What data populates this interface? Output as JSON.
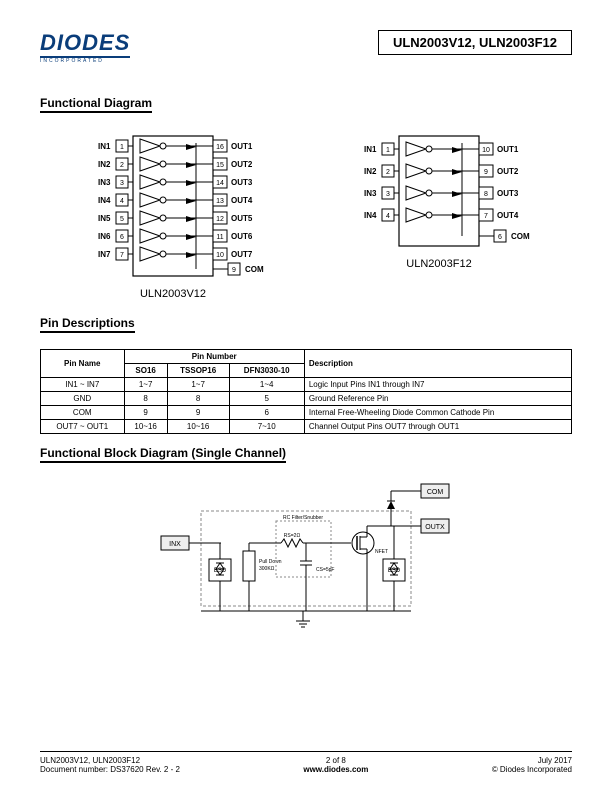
{
  "logo_text": "DIODES",
  "logo_sub": "INCORPORATED",
  "part_numbers": "ULN2003V12, ULN2003F12",
  "sections": {
    "functional_diagram": "Functional Diagram",
    "pin_descriptions": "Pin Descriptions",
    "block_diagram": "Functional Block Diagram (Single Channel)"
  },
  "diagram_v12": {
    "label": "ULN2003V12",
    "left_pins": [
      {
        "name": "IN1",
        "num": "1"
      },
      {
        "name": "IN2",
        "num": "2"
      },
      {
        "name": "IN3",
        "num": "3"
      },
      {
        "name": "IN4",
        "num": "4"
      },
      {
        "name": "IN5",
        "num": "5"
      },
      {
        "name": "IN6",
        "num": "6"
      },
      {
        "name": "IN7",
        "num": "7"
      }
    ],
    "right_pins": [
      {
        "name": "OUT1",
        "num": "16"
      },
      {
        "name": "OUT2",
        "num": "15"
      },
      {
        "name": "OUT3",
        "num": "14"
      },
      {
        "name": "OUT4",
        "num": "13"
      },
      {
        "name": "OUT5",
        "num": "12"
      },
      {
        "name": "OUT6",
        "num": "11"
      },
      {
        "name": "OUT7",
        "num": "10"
      }
    ],
    "com": {
      "name": "COM",
      "num": "9"
    }
  },
  "diagram_f12": {
    "label": "ULN2003F12",
    "left_pins": [
      {
        "name": "IN1",
        "num": "1"
      },
      {
        "name": "IN2",
        "num": "2"
      },
      {
        "name": "IN3",
        "num": "3"
      },
      {
        "name": "IN4",
        "num": "4"
      }
    ],
    "right_pins": [
      {
        "name": "OUT1",
        "num": "10"
      },
      {
        "name": "OUT2",
        "num": "9"
      },
      {
        "name": "OUT3",
        "num": "8"
      },
      {
        "name": "OUT4",
        "num": "7"
      }
    ],
    "com": {
      "name": "COM",
      "num": "6"
    }
  },
  "pin_table": {
    "headers": {
      "pin_name": "Pin Name",
      "pin_number": "Pin Number",
      "so16": "SO16",
      "tssop16": "TSSOP16",
      "dfn": "DFN3030-10",
      "description": "Description"
    },
    "rows": [
      {
        "name": "IN1 ~ IN7",
        "so16": "1~7",
        "tssop16": "1~7",
        "dfn": "1~4",
        "desc": "Logic Input Pins IN1 through IN7"
      },
      {
        "name": "GND",
        "so16": "8",
        "tssop16": "8",
        "dfn": "5",
        "desc": "Ground Reference Pin"
      },
      {
        "name": "COM",
        "so16": "9",
        "tssop16": "9",
        "dfn": "6",
        "desc": "Internal Free-Wheeling Diode Common Cathode Pin"
      },
      {
        "name": "OUT7 ~ OUT1",
        "so16": "10~16",
        "tssop16": "10~16",
        "dfn": "7~10",
        "desc": "Channel Output Pins OUT7 through OUT1"
      }
    ]
  },
  "block": {
    "inx": "INX",
    "outx": "OUTX",
    "com": "COM",
    "esd": "ESD",
    "pull_down": "Pull Down",
    "pull_down_val": "300KΩ",
    "rs": "RS=2Ω",
    "cs": "CS=5pF",
    "rc_title": "RC Filter/Snubber",
    "nfet": "NFET"
  },
  "footer": {
    "parts": "ULN2003V12, ULN2003F12",
    "docnum": "Document number: DS37620 Rev. 2 - 2",
    "page": "2 of 8",
    "url": "www.diodes.com",
    "date": "July 2017",
    "copyright": "© Diodes Incorporated"
  },
  "colors": {
    "brand": "#0a3d7a",
    "line": "#000000"
  }
}
